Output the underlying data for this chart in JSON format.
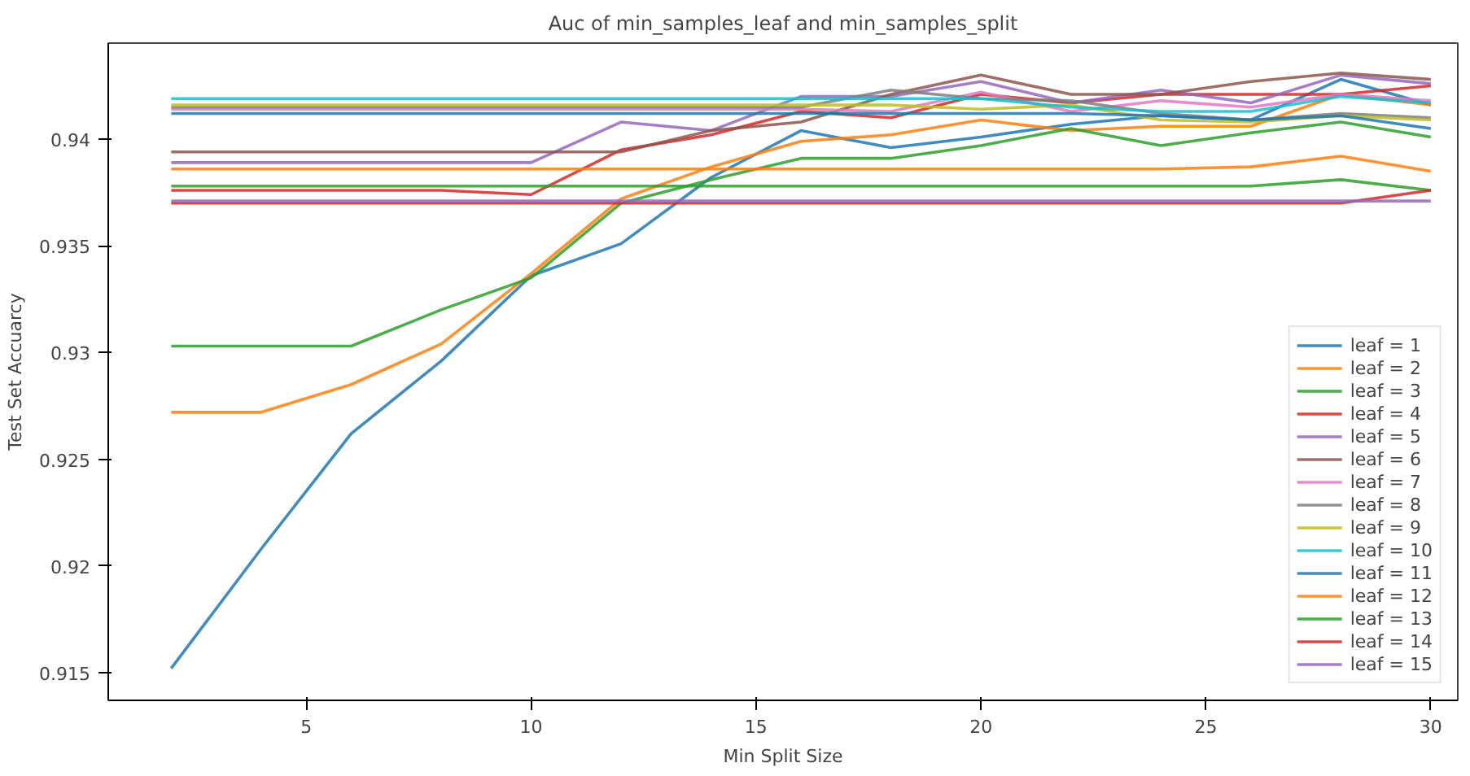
{
  "chart_data": {
    "type": "line",
    "title": "Auc of min_samples_leaf and min_samples_split",
    "xlabel": "Min Split Size",
    "ylabel": "Test Set Accuarcy",
    "x": [
      2,
      4,
      6,
      8,
      10,
      12,
      14,
      16,
      18,
      20,
      22,
      24,
      26,
      28,
      30
    ],
    "xlim": [
      0.6,
      30.6
    ],
    "ylim": [
      0.9137,
      0.9445
    ],
    "xticks": [
      5,
      10,
      15,
      20,
      25,
      30
    ],
    "yticks": [
      0.915,
      0.92,
      0.925,
      0.93,
      0.935,
      0.94
    ],
    "grid": false,
    "legend": "bottom right",
    "marker": "none",
    "line_style": "solid",
    "series": [
      {
        "name": "leaf = 1",
        "color": "#1f77b4",
        "values": [
          0.9152,
          0.9208,
          0.9262,
          0.9296,
          0.9336,
          0.9351,
          0.9382,
          0.9404,
          0.9396,
          0.9401,
          0.9407,
          0.9411,
          0.9409,
          0.9428,
          0.9416
        ]
      },
      {
        "name": "leaf = 2",
        "color": "#ff7f0e",
        "values": [
          0.9272,
          0.9272,
          0.9285,
          0.9304,
          0.9337,
          0.9372,
          0.9387,
          0.9399,
          0.9402,
          0.9409,
          0.9404,
          0.9406,
          0.9406,
          0.9421,
          0.9416
        ]
      },
      {
        "name": "leaf = 3",
        "color": "#2ca02c",
        "values": [
          0.9303,
          0.9303,
          0.9303,
          0.932,
          0.9335,
          0.937,
          0.9381,
          0.9391,
          0.9391,
          0.9397,
          0.9405,
          0.9397,
          0.9403,
          0.9408,
          0.9401
        ]
      },
      {
        "name": "leaf = 4",
        "color": "#d62728",
        "values": [
          0.9376,
          0.9376,
          0.9376,
          0.9376,
          0.9374,
          0.9395,
          0.9402,
          0.9413,
          0.941,
          0.9421,
          0.9417,
          0.9421,
          0.9421,
          0.9421,
          0.9425
        ]
      },
      {
        "name": "leaf = 5",
        "color": "#9467bd",
        "values": [
          0.9389,
          0.9389,
          0.9389,
          0.9389,
          0.9389,
          0.9408,
          0.9404,
          0.942,
          0.942,
          0.9427,
          0.9417,
          0.9423,
          0.9417,
          0.943,
          0.9426
        ]
      },
      {
        "name": "leaf = 6",
        "color": "#8c564b",
        "values": [
          0.9394,
          0.9394,
          0.9394,
          0.9394,
          0.9394,
          0.9394,
          0.9404,
          0.9408,
          0.9421,
          0.943,
          0.9421,
          0.9421,
          0.9427,
          0.9431,
          0.9428
        ]
      },
      {
        "name": "leaf = 7",
        "color": "#e377c2",
        "values": [
          0.9414,
          0.9414,
          0.9414,
          0.9414,
          0.9414,
          0.9414,
          0.9414,
          0.9414,
          0.9413,
          0.9422,
          0.9413,
          0.9418,
          0.9415,
          0.9421,
          0.9418
        ]
      },
      {
        "name": "leaf = 8",
        "color": "#7f7f7f",
        "values": [
          0.9415,
          0.9415,
          0.9415,
          0.9415,
          0.9415,
          0.9415,
          0.9415,
          0.9415,
          0.9423,
          0.9419,
          0.9418,
          0.9412,
          0.9409,
          0.9412,
          0.941
        ]
      },
      {
        "name": "leaf = 9",
        "color": "#bcbd22",
        "values": [
          0.9416,
          0.9416,
          0.9416,
          0.9416,
          0.9416,
          0.9416,
          0.9416,
          0.9416,
          0.9416,
          0.9414,
          0.9416,
          0.9409,
          0.9408,
          0.9411,
          0.9409
        ]
      },
      {
        "name": "leaf = 10",
        "color": "#17becf",
        "values": [
          0.9419,
          0.9419,
          0.9419,
          0.9419,
          0.9419,
          0.9419,
          0.9419,
          0.9419,
          0.9419,
          0.9419,
          0.9415,
          0.9413,
          0.9413,
          0.942,
          0.9417
        ]
      },
      {
        "name": "leaf = 11",
        "color": "#1f77b4",
        "values": [
          0.9412,
          0.9412,
          0.9412,
          0.9412,
          0.9412,
          0.9412,
          0.9412,
          0.9412,
          0.9412,
          0.9412,
          0.9412,
          0.9411,
          0.9409,
          0.9411,
          0.9405
        ]
      },
      {
        "name": "leaf = 12",
        "color": "#ff7f0e",
        "values": [
          0.9386,
          0.9386,
          0.9386,
          0.9386,
          0.9386,
          0.9386,
          0.9386,
          0.9386,
          0.9386,
          0.9386,
          0.9386,
          0.9386,
          0.9387,
          0.9392,
          0.9385
        ]
      },
      {
        "name": "leaf = 13",
        "color": "#2ca02c",
        "values": [
          0.9378,
          0.9378,
          0.9378,
          0.9378,
          0.9378,
          0.9378,
          0.9378,
          0.9378,
          0.9378,
          0.9378,
          0.9378,
          0.9378,
          0.9378,
          0.9381,
          0.9376
        ]
      },
      {
        "name": "leaf = 14",
        "color": "#d62728",
        "values": [
          0.937,
          0.937,
          0.937,
          0.937,
          0.937,
          0.937,
          0.937,
          0.937,
          0.937,
          0.937,
          0.937,
          0.937,
          0.937,
          0.937,
          0.9376
        ]
      },
      {
        "name": "leaf = 15",
        "color": "#9467bd",
        "values": [
          0.9371,
          0.9371,
          0.9371,
          0.9371,
          0.9371,
          0.9371,
          0.9371,
          0.9371,
          0.9371,
          0.9371,
          0.9371,
          0.9371,
          0.9371,
          0.9371,
          0.9371
        ]
      }
    ]
  }
}
